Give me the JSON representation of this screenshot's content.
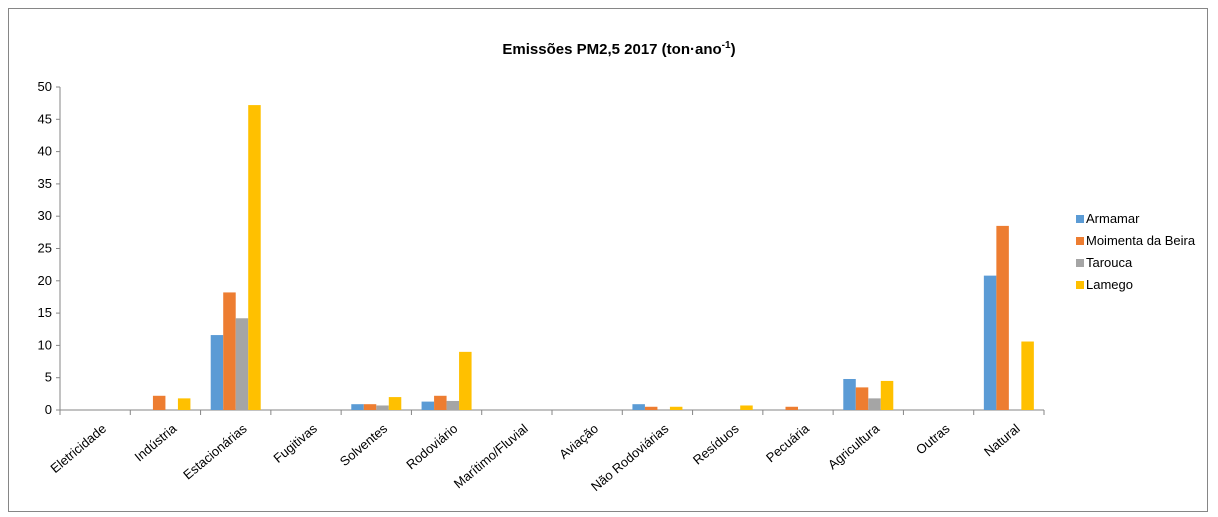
{
  "chart_data": {
    "type": "bar",
    "title": "Emissões PM2,5 2017 (ton·ano",
    "title_superscript": "-1",
    "title_suffix": ")",
    "categories": [
      "Eletricidade",
      "Indústria",
      "Estacionárias",
      "Fugitivas",
      "Solventes",
      "Rodoviário",
      "Marítimo/Fluvial",
      "Aviação",
      "Não Rodoviárias",
      "Resíduos",
      "Pecuária",
      "Agricultura",
      "Outras",
      "Natural"
    ],
    "series": [
      {
        "name": "Armamar",
        "color": "#5B9BD5",
        "values": [
          0,
          0,
          11.6,
          0,
          0.9,
          1.3,
          0,
          0,
          0.9,
          0,
          0,
          4.8,
          0,
          20.8
        ]
      },
      {
        "name": "Moimenta da Beira",
        "color": "#ED7D31",
        "values": [
          0,
          2.2,
          18.2,
          0,
          0.9,
          2.2,
          0,
          0,
          0.5,
          0,
          0.5,
          3.5,
          0,
          28.5
        ]
      },
      {
        "name": "Tarouca",
        "color": "#A5A5A5",
        "values": [
          0,
          0,
          14.2,
          0,
          0.7,
          1.4,
          0,
          0,
          0,
          0,
          0,
          1.8,
          0,
          0
        ]
      },
      {
        "name": "Lamego",
        "color": "#FFC000",
        "values": [
          0,
          1.8,
          47.2,
          0,
          2.0,
          9.0,
          0,
          0,
          0.5,
          0.7,
          0,
          4.5,
          0,
          10.6
        ]
      }
    ],
    "ylim": [
      0,
      50
    ],
    "yticks": [
      0,
      5,
      10,
      15,
      20,
      25,
      30,
      35,
      40,
      45,
      50
    ],
    "grid": false,
    "legend_position": "right"
  }
}
